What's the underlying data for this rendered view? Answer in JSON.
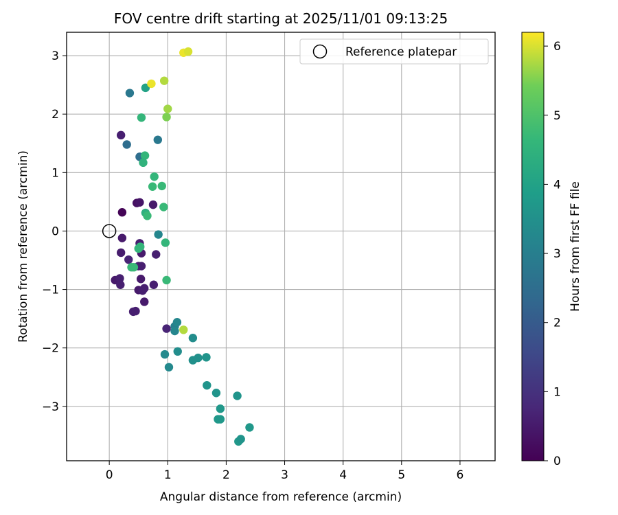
{
  "chart_data": {
    "type": "scatter",
    "title": "FOV centre drift starting at 2025/11/01 09:13:25",
    "xlabel": "Angular distance from reference (arcmin)",
    "ylabel": "Rotation from reference (arcmin)",
    "xlim": [
      -0.73,
      6.6
    ],
    "ylim": [
      -3.93,
      3.4
    ],
    "x_ticks": [
      0,
      1,
      2,
      3,
      4,
      5,
      6
    ],
    "y_ticks": [
      -3,
      -2,
      -1,
      0,
      1,
      2,
      3
    ],
    "grid": true,
    "legend": {
      "position": "top-right",
      "entries": [
        "Reference platepar"
      ]
    },
    "reference_point": {
      "x": 0,
      "y": 0,
      "label": "Reference platepar"
    },
    "colorbar": {
      "label": "Hours from first FF file",
      "range": [
        0,
        6.2
      ],
      "ticks": [
        0,
        1,
        2,
        3,
        4,
        5,
        6
      ],
      "colormap": "viridis"
    },
    "points": [
      {
        "x": 0.22,
        "y": 0.32,
        "hours": 0.05
      },
      {
        "x": 0.47,
        "y": 0.48,
        "hours": 0.3
      },
      {
        "x": 0.52,
        "y": 0.49,
        "hours": 0.4
      },
      {
        "x": 0.2,
        "y": 1.64,
        "hours": 0.6
      },
      {
        "x": 0.75,
        "y": 0.45,
        "hours": 0.5
      },
      {
        "x": 0.22,
        "y": -0.12,
        "hours": 0.5
      },
      {
        "x": 0.2,
        "y": -0.37,
        "hours": 0.55
      },
      {
        "x": 0.52,
        "y": -0.21,
        "hours": 0.6
      },
      {
        "x": 0.55,
        "y": -0.38,
        "hours": 0.5
      },
      {
        "x": 0.8,
        "y": -0.4,
        "hours": 0.6
      },
      {
        "x": 0.33,
        "y": -0.49,
        "hours": 0.7
      },
      {
        "x": 0.5,
        "y": -0.6,
        "hours": 0.6
      },
      {
        "x": 0.55,
        "y": -0.6,
        "hours": 0.6
      },
      {
        "x": 0.1,
        "y": -0.84,
        "hours": 0.5
      },
      {
        "x": 0.18,
        "y": -0.81,
        "hours": 0.6
      },
      {
        "x": 0.19,
        "y": -0.92,
        "hours": 0.6
      },
      {
        "x": 0.54,
        "y": -0.82,
        "hours": 0.5
      },
      {
        "x": 0.76,
        "y": -0.92,
        "hours": 0.6
      },
      {
        "x": 0.5,
        "y": -1.01,
        "hours": 0.5
      },
      {
        "x": 0.57,
        "y": -1.02,
        "hours": 0.6
      },
      {
        "x": 0.6,
        "y": -0.98,
        "hours": 0.6
      },
      {
        "x": 0.6,
        "y": -1.21,
        "hours": 0.5
      },
      {
        "x": 0.41,
        "y": -1.38,
        "hours": 0.6
      },
      {
        "x": 0.45,
        "y": -1.37,
        "hours": 0.6
      },
      {
        "x": 0.98,
        "y": -1.67,
        "hours": 0.7
      },
      {
        "x": 0.3,
        "y": 1.48,
        "hours": 2.5
      },
      {
        "x": 0.35,
        "y": 2.36,
        "hours": 2.8
      },
      {
        "x": 0.52,
        "y": 1.27,
        "hours": 2.5
      },
      {
        "x": 0.83,
        "y": 1.56,
        "hours": 2.8
      },
      {
        "x": 0.84,
        "y": -0.06,
        "hours": 3.2
      },
      {
        "x": 1.12,
        "y": -1.63,
        "hours": 3.0
      },
      {
        "x": 1.16,
        "y": -1.56,
        "hours": 3.2
      },
      {
        "x": 1.12,
        "y": -1.71,
        "hours": 3.2
      },
      {
        "x": 0.95,
        "y": -2.11,
        "hours": 3.3
      },
      {
        "x": 1.02,
        "y": -2.33,
        "hours": 3.3
      },
      {
        "x": 1.17,
        "y": -2.06,
        "hours": 3.4
      },
      {
        "x": 1.43,
        "y": -1.83,
        "hours": 3.4
      },
      {
        "x": 1.43,
        "y": -2.21,
        "hours": 3.5
      },
      {
        "x": 1.52,
        "y": -2.17,
        "hours": 3.5
      },
      {
        "x": 1.66,
        "y": -2.16,
        "hours": 3.6
      },
      {
        "x": 1.67,
        "y": -2.64,
        "hours": 3.6
      },
      {
        "x": 1.83,
        "y": -2.77,
        "hours": 3.6
      },
      {
        "x": 1.9,
        "y": -3.04,
        "hours": 3.7
      },
      {
        "x": 1.86,
        "y": -3.22,
        "hours": 3.7
      },
      {
        "x": 1.9,
        "y": -3.22,
        "hours": 3.7
      },
      {
        "x": 2.19,
        "y": -2.82,
        "hours": 3.6
      },
      {
        "x": 2.21,
        "y": -3.6,
        "hours": 3.7
      },
      {
        "x": 2.25,
        "y": -3.56,
        "hours": 3.6
      },
      {
        "x": 2.4,
        "y": -3.36,
        "hours": 3.7
      },
      {
        "x": 0.62,
        "y": 2.45,
        "hours": 4.0
      },
      {
        "x": 0.55,
        "y": 1.94,
        "hours": 4.6
      },
      {
        "x": 0.61,
        "y": 1.29,
        "hours": 4.6
      },
      {
        "x": 0.58,
        "y": 1.17,
        "hours": 4.5
      },
      {
        "x": 0.77,
        "y": 0.93,
        "hours": 4.6
      },
      {
        "x": 0.74,
        "y": 0.76,
        "hours": 4.7
      },
      {
        "x": 0.9,
        "y": 0.77,
        "hours": 4.7
      },
      {
        "x": 0.93,
        "y": 0.41,
        "hours": 4.7
      },
      {
        "x": 0.62,
        "y": 0.31,
        "hours": 4.4
      },
      {
        "x": 0.65,
        "y": 0.26,
        "hours": 4.7
      },
      {
        "x": 0.96,
        "y": -0.2,
        "hours": 4.6
      },
      {
        "x": 0.5,
        "y": -0.3,
        "hours": 4.6
      },
      {
        "x": 0.53,
        "y": -0.27,
        "hours": 4.6
      },
      {
        "x": 0.38,
        "y": -0.62,
        "hours": 4.7
      },
      {
        "x": 0.42,
        "y": -0.62,
        "hours": 4.7
      },
      {
        "x": 0.98,
        "y": -0.84,
        "hours": 4.7
      },
      {
        "x": 0.98,
        "y": 1.95,
        "hours": 5.5
      },
      {
        "x": 1.0,
        "y": 2.09,
        "hours": 5.7
      },
      {
        "x": 0.94,
        "y": 2.57,
        "hours": 5.8
      },
      {
        "x": 0.72,
        "y": 2.52,
        "hours": 6.1
      },
      {
        "x": 1.27,
        "y": 3.05,
        "hours": 6.1
      },
      {
        "x": 1.35,
        "y": 3.07,
        "hours": 6.0
      },
      {
        "x": 1.27,
        "y": -1.69,
        "hours": 5.8
      }
    ]
  }
}
